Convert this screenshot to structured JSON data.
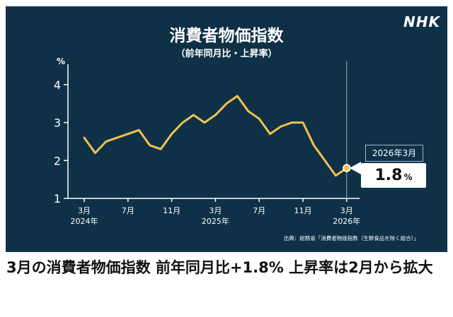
{
  "brand": {
    "logo_text": "NHK"
  },
  "chart_data": {
    "type": "line",
    "title": "消費者物価指数",
    "subtitle": "（前年同月比・上昇率）",
    "ylabel": "%",
    "ylim": [
      1,
      4.5
    ],
    "yticks": [
      "1",
      "2",
      "3",
      "4"
    ],
    "ytick_values": [
      1,
      2,
      3,
      4
    ],
    "x": [
      "2024-03",
      "2024-04",
      "2024-05",
      "2024-06",
      "2024-07",
      "2024-08",
      "2024-09",
      "2024-10",
      "2024-11",
      "2024-12",
      "2025-01",
      "2025-02",
      "2025-03",
      "2025-04",
      "2025-05",
      "2025-06",
      "2025-07",
      "2025-08",
      "2025-09",
      "2025-10",
      "2025-11",
      "2025-12",
      "2026-01",
      "2026-02",
      "2026-03"
    ],
    "xtick_labels": [
      {
        "index": 0,
        "month": "3月",
        "year": "2024年"
      },
      {
        "index": 4,
        "month": "7月",
        "year": ""
      },
      {
        "index": 8,
        "month": "11月",
        "year": ""
      },
      {
        "index": 12,
        "month": "3月",
        "year": "2025年"
      },
      {
        "index": 16,
        "month": "7月",
        "year": ""
      },
      {
        "index": 20,
        "month": "11月",
        "year": ""
      },
      {
        "index": 24,
        "month": "3月",
        "year": "2026年"
      }
    ],
    "series": [
      {
        "values": [
          2.6,
          2.2,
          2.5,
          2.6,
          2.7,
          2.8,
          2.4,
          2.3,
          2.7,
          3.0,
          3.2,
          3.0,
          3.2,
          3.5,
          3.7,
          3.3,
          3.1,
          2.7,
          2.9,
          3.0,
          3.0,
          2.4,
          2.0,
          1.6,
          1.8
        ]
      }
    ],
    "line_color": "#f2c14e",
    "grid": false,
    "highlight": {
      "label": "2026年3月",
      "value": "1.8",
      "unit": "%"
    },
    "source": "出典：総務省「消費者物価指数（生鮮食品を除く総合）」"
  },
  "headline": "3月の消費者物価指数 前年同月比+1.8% 上昇率は2月から拡大"
}
